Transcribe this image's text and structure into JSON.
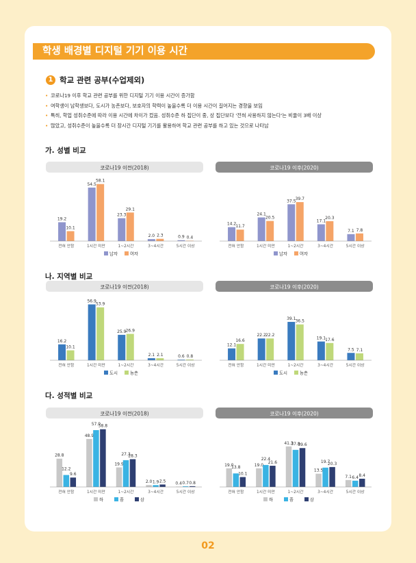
{
  "page": {
    "title": "학생 배경별 디지털 기기 이용 시간",
    "section_number": "1",
    "section_title": "학교 관련 공부(수업제외)",
    "bullets": [
      "코로나19 이후 학교 관련 공부를 위한 디지털 기기 이용 시간이 증가함",
      "여학생이 남학생보다, 도시가 농촌보다, 보호자의 학력이 높을수록 더 이용 시간이 길어지는 경향을 보임",
      "특히, 학업 성취수준에 따라 이용 시간에 차이가 컸음. 성취수준 하 집단이 중, 상 집단보다 '전혀 사용하지 않는다'는 비율이 3배 이상",
      "많았고, 성취수준이 높을수록 더 장시간 디지털 기기를 활용하여 학교 관련 공부를 하고 있는 것으로 나타남"
    ],
    "subsections": [
      "가. 성별 비교",
      "나. 지역별 비교",
      "다. 성적별 비교"
    ],
    "page_number": "02"
  },
  "chart_data": [
    {
      "type": "bar",
      "id": "gender-2018",
      "title": "코로나19 이전(2018)",
      "categories": [
        "전혀 안함",
        "1시간 미만",
        "1~2시간",
        "3~4시간",
        "5시간 이상"
      ],
      "series": [
        {
          "name": "남자",
          "color": "#8f95cc",
          "values": [
            19.2,
            54.5,
            23.3,
            2.0,
            0.9
          ]
        },
        {
          "name": "여자",
          "color": "#f5a467",
          "values": [
            10.1,
            58.1,
            29.1,
            2.3,
            0.4
          ]
        }
      ],
      "ylim": [
        0,
        60
      ]
    },
    {
      "type": "bar",
      "id": "gender-2020",
      "title": "코로나19 이후(2020)",
      "categories": [
        "전혀 안함",
        "1시간 미만",
        "1~2시간",
        "3~4시간",
        "5시간 이상"
      ],
      "series": [
        {
          "name": "남자",
          "color": "#8f95cc",
          "values": [
            14.2,
            24.1,
            37.5,
            17.1,
            7.1
          ]
        },
        {
          "name": "여자",
          "color": "#f5a467",
          "values": [
            11.7,
            20.5,
            39.7,
            20.3,
            7.8
          ]
        }
      ],
      "ylim": [
        0,
        60
      ]
    },
    {
      "type": "bar",
      "id": "region-2018",
      "title": "코로나19 이전(2018)",
      "categories": [
        "전혀 안함",
        "1시간 미만",
        "1~2시간",
        "3~4시간",
        "5시간 이상"
      ],
      "series": [
        {
          "name": "도시",
          "color": "#3a7bbf",
          "values": [
            16.2,
            56.9,
            25.9,
            2.1,
            0.6
          ]
        },
        {
          "name": "농촌",
          "color": "#bfd87a",
          "values": [
            10.1,
            53.9,
            26.9,
            2.1,
            0.8
          ]
        }
      ],
      "ylim": [
        0,
        60
      ]
    },
    {
      "type": "bar",
      "id": "region-2020",
      "title": "코로나19 이후(2020)",
      "categories": [
        "전혀 안함",
        "1시간 미만",
        "1~2시간",
        "3~4시간",
        "5시간 이상"
      ],
      "series": [
        {
          "name": "도시",
          "color": "#3a7bbf",
          "values": [
            12.1,
            22.2,
            39.1,
            19.1,
            7.5
          ]
        },
        {
          "name": "농촌",
          "color": "#bfd87a",
          "values": [
            16.6,
            22.2,
            36.5,
            17.6,
            7.1
          ]
        }
      ],
      "ylim": [
        0,
        60
      ]
    },
    {
      "type": "bar",
      "id": "grade-2018",
      "title": "코로나19 이전(2018)",
      "categories": [
        "전혀 안함",
        "1시간 미만",
        "1~2시간",
        "3~4시간",
        "5시간 이상"
      ],
      "series": [
        {
          "name": "하",
          "color": "#c8c8c8",
          "values": [
            28.8,
            48.9,
            19.9,
            2.0,
            0.4
          ]
        },
        {
          "name": "중",
          "color": "#3ab3e3",
          "values": [
            12.2,
            57.9,
            27.3,
            1.9,
            0.7
          ]
        },
        {
          "name": "상",
          "color": "#2e3f72",
          "values": [
            9.6,
            58.8,
            28.3,
            2.5,
            0.8
          ]
        }
      ],
      "ylim": [
        0,
        60
      ]
    },
    {
      "type": "bar",
      "id": "grade-2020",
      "title": "코로나19 이후(2020)",
      "categories": [
        "전혀 안함",
        "1시간 미만",
        "1~2시간",
        "3~4시간",
        "5시간 이상"
      ],
      "series": [
        {
          "name": "하",
          "color": "#c8c8c8",
          "values": [
            19.0,
            19.0,
            41.3,
            13.5,
            7.1
          ]
        },
        {
          "name": "중",
          "color": "#3ab3e3",
          "values": [
            13.8,
            22.4,
            37.8,
            19.7,
            6.4
          ]
        },
        {
          "name": "상",
          "color": "#2e3f72",
          "values": [
            10.1,
            21.6,
            39.6,
            20.3,
            8.4
          ]
        }
      ],
      "ylim": [
        0,
        60
      ]
    }
  ]
}
